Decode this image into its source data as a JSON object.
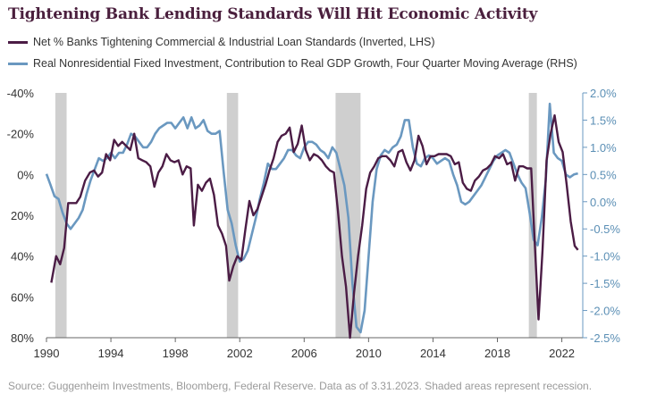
{
  "chart_data": {
    "type": "line",
    "title": "Tightening Bank Lending Standards Will Hit Economic Activity",
    "source": "Source: Guggenheim Investments, Bloomberg, Federal Reserve. Data as of 3.31.2023. Shaded areas represent recession.",
    "xlim": [
      1990,
      2023.3
    ],
    "x_ticks": [
      "1990",
      "1994",
      "1998",
      "2002",
      "2006",
      "2010",
      "2014",
      "2018",
      "2022"
    ],
    "y_left": {
      "lim": [
        -40,
        80
      ],
      "inverted": true,
      "ticks": [
        "-40%",
        "-20%",
        "0%",
        "20%",
        "40%",
        "60%",
        "80%"
      ]
    },
    "y_right": {
      "lim": [
        -2.5,
        2.0
      ],
      "ticks": [
        "2.0%",
        "1.5%",
        "1.0%",
        "0.5%",
        "0.0%",
        "-0.5%",
        "-1.0%",
        "-1.5%",
        "-2.0%",
        "-2.5%"
      ]
    },
    "recessions": [
      [
        1990.55,
        1991.25
      ],
      [
        2001.2,
        2001.9
      ],
      [
        2007.95,
        2009.5
      ],
      [
        2019.95,
        2020.45
      ]
    ],
    "legend_position": "top-left",
    "grid": false,
    "series": [
      {
        "name": "Net % Banks Tightening Commercial & Industrial Loan Standards (Inverted, LHS)",
        "axis": "left",
        "color": "#4b1c45",
        "points": [
          [
            1990.3,
            53
          ],
          [
            1990.6,
            40
          ],
          [
            1990.85,
            44
          ],
          [
            1991.1,
            36
          ],
          [
            1991.35,
            14
          ],
          [
            1991.6,
            14
          ],
          [
            1991.85,
            14
          ],
          [
            1992.1,
            11
          ],
          [
            1992.4,
            3
          ],
          [
            1992.7,
            -1
          ],
          [
            1992.95,
            -2
          ],
          [
            1993.2,
            1
          ],
          [
            1993.45,
            -1
          ],
          [
            1993.7,
            -10
          ],
          [
            1993.95,
            -7
          ],
          [
            1994.2,
            -17
          ],
          [
            1994.45,
            -14
          ],
          [
            1994.7,
            -16
          ],
          [
            1994.95,
            -14
          ],
          [
            1995.2,
            -12
          ],
          [
            1995.45,
            -20
          ],
          [
            1995.7,
            -8
          ],
          [
            1995.95,
            -7
          ],
          [
            1996.2,
            -6
          ],
          [
            1996.45,
            -4
          ],
          [
            1996.7,
            6
          ],
          [
            1996.95,
            -1
          ],
          [
            1997.2,
            -4
          ],
          [
            1997.45,
            -10
          ],
          [
            1997.7,
            -7
          ],
          [
            1997.95,
            -6
          ],
          [
            1998.2,
            -7
          ],
          [
            1998.45,
            0
          ],
          [
            1998.7,
            -4
          ],
          [
            1998.95,
            -3
          ],
          [
            1999.15,
            25
          ],
          [
            1999.4,
            5
          ],
          [
            1999.65,
            8
          ],
          [
            1999.9,
            4
          ],
          [
            2000.15,
            2
          ],
          [
            2000.4,
            10
          ],
          [
            2000.65,
            25
          ],
          [
            2000.9,
            29
          ],
          [
            2001.15,
            35
          ],
          [
            2001.35,
            52
          ],
          [
            2001.6,
            45
          ],
          [
            2001.85,
            40
          ],
          [
            2002.1,
            42
          ],
          [
            2002.35,
            27
          ],
          [
            2002.6,
            13
          ],
          [
            2002.85,
            20
          ],
          [
            2003.1,
            17
          ],
          [
            2003.35,
            11
          ],
          [
            2003.6,
            5
          ],
          [
            2003.85,
            -2
          ],
          [
            2004.1,
            -8
          ],
          [
            2004.35,
            -16
          ],
          [
            2004.6,
            -19
          ],
          [
            2004.85,
            -20
          ],
          [
            2005.1,
            -23
          ],
          [
            2005.35,
            -11
          ],
          [
            2005.6,
            -15
          ],
          [
            2005.85,
            -24
          ],
          [
            2006.1,
            -12
          ],
          [
            2006.35,
            -7
          ],
          [
            2006.6,
            -10
          ],
          [
            2006.85,
            -9
          ],
          [
            2007.1,
            -7
          ],
          [
            2007.35,
            -4
          ],
          [
            2007.6,
            -2
          ],
          [
            2007.85,
            -1
          ],
          [
            2008.1,
            18
          ],
          [
            2008.35,
            40
          ],
          [
            2008.6,
            55
          ],
          [
            2008.85,
            80
          ],
          [
            2009.1,
            58
          ],
          [
            2009.35,
            40
          ],
          [
            2009.6,
            25
          ],
          [
            2009.85,
            7
          ],
          [
            2010.1,
            -1
          ],
          [
            2010.35,
            -4
          ],
          [
            2010.6,
            -8
          ],
          [
            2010.85,
            -9
          ],
          [
            2011.1,
            -9
          ],
          [
            2011.35,
            -7
          ],
          [
            2011.6,
            -4
          ],
          [
            2011.85,
            -11
          ],
          [
            2012.1,
            -12
          ],
          [
            2012.35,
            -6
          ],
          [
            2012.6,
            -2
          ],
          [
            2012.85,
            -7
          ],
          [
            2013.1,
            -19
          ],
          [
            2013.35,
            -14
          ],
          [
            2013.6,
            -5
          ],
          [
            2013.85,
            -9
          ],
          [
            2014.1,
            -9
          ],
          [
            2014.35,
            -10
          ],
          [
            2014.6,
            -10
          ],
          [
            2014.85,
            -10
          ],
          [
            2015.1,
            -9
          ],
          [
            2015.35,
            -5
          ],
          [
            2015.6,
            -6
          ],
          [
            2015.85,
            4
          ],
          [
            2016.1,
            7
          ],
          [
            2016.35,
            8
          ],
          [
            2016.6,
            3
          ],
          [
            2016.85,
            1
          ],
          [
            2017.1,
            -2
          ],
          [
            2017.35,
            -3
          ],
          [
            2017.6,
            -5
          ],
          [
            2017.85,
            -9
          ],
          [
            2018.1,
            -8
          ],
          [
            2018.35,
            -10
          ],
          [
            2018.6,
            -5
          ],
          [
            2018.85,
            -6
          ],
          [
            2019.1,
            3
          ],
          [
            2019.35,
            -4
          ],
          [
            2019.6,
            -4
          ],
          [
            2019.85,
            -3
          ],
          [
            2020.1,
            -3
          ],
          [
            2020.3,
            30
          ],
          [
            2020.55,
            71
          ],
          [
            2020.8,
            37
          ],
          [
            2021.05,
            -7
          ],
          [
            2021.3,
            -20
          ],
          [
            2021.55,
            -29
          ],
          [
            2021.8,
            -16
          ],
          [
            2022.05,
            -11
          ],
          [
            2022.3,
            5
          ],
          [
            2022.55,
            23
          ],
          [
            2022.8,
            35
          ],
          [
            2023.0,
            37
          ]
        ]
      },
      {
        "name": "Real Nonresidential Fixed Investment, Contribution to Real GDP Growth, Four Quarter Moving Average (RHS)",
        "axis": "right",
        "color": "#6a98c0",
        "points": [
          [
            1990.0,
            0.51
          ],
          [
            1990.25,
            0.31
          ],
          [
            1990.5,
            0.1
          ],
          [
            1990.75,
            0.05
          ],
          [
            1991.0,
            -0.2
          ],
          [
            1991.25,
            -0.4
          ],
          [
            1991.5,
            -0.5
          ],
          [
            1991.75,
            -0.4
          ],
          [
            1992.0,
            -0.3
          ],
          [
            1992.25,
            -0.15
          ],
          [
            1992.5,
            0.15
          ],
          [
            1992.75,
            0.4
          ],
          [
            1993.0,
            0.6
          ],
          [
            1993.25,
            0.8
          ],
          [
            1993.5,
            0.75
          ],
          [
            1993.75,
            0.8
          ],
          [
            1994.0,
            0.9
          ],
          [
            1994.25,
            0.8
          ],
          [
            1994.5,
            0.9
          ],
          [
            1994.75,
            0.9
          ],
          [
            1995.0,
            1.05
          ],
          [
            1995.25,
            1.25
          ],
          [
            1995.5,
            1.2
          ],
          [
            1995.75,
            1.1
          ],
          [
            1996.0,
            1.0
          ],
          [
            1996.25,
            1.0
          ],
          [
            1996.5,
            1.1
          ],
          [
            1996.75,
            1.25
          ],
          [
            1997.0,
            1.35
          ],
          [
            1997.25,
            1.4
          ],
          [
            1997.5,
            1.45
          ],
          [
            1997.75,
            1.45
          ],
          [
            1998.0,
            1.35
          ],
          [
            1998.25,
            1.45
          ],
          [
            1998.5,
            1.55
          ],
          [
            1998.75,
            1.35
          ],
          [
            1999.0,
            1.55
          ],
          [
            1999.25,
            1.35
          ],
          [
            1999.5,
            1.4
          ],
          [
            1999.75,
            1.5
          ],
          [
            2000.0,
            1.3
          ],
          [
            2000.25,
            1.25
          ],
          [
            2000.5,
            1.25
          ],
          [
            2000.75,
            1.3
          ],
          [
            2001.0,
            0.55
          ],
          [
            2001.25,
            -0.15
          ],
          [
            2001.5,
            -0.4
          ],
          [
            2001.75,
            -0.8
          ],
          [
            2002.0,
            -1.1
          ],
          [
            2002.25,
            -1.05
          ],
          [
            2002.5,
            -0.9
          ],
          [
            2002.75,
            -0.6
          ],
          [
            2003.0,
            -0.3
          ],
          [
            2003.25,
            0.05
          ],
          [
            2003.5,
            0.35
          ],
          [
            2003.75,
            0.7
          ],
          [
            2004.0,
            0.6
          ],
          [
            2004.25,
            0.6
          ],
          [
            2004.5,
            0.7
          ],
          [
            2004.75,
            0.8
          ],
          [
            2005.0,
            0.95
          ],
          [
            2005.25,
            0.95
          ],
          [
            2005.5,
            0.85
          ],
          [
            2005.75,
            0.8
          ],
          [
            2006.0,
            1.0
          ],
          [
            2006.25,
            1.1
          ],
          [
            2006.5,
            1.1
          ],
          [
            2006.75,
            1.05
          ],
          [
            2007.0,
            0.95
          ],
          [
            2007.25,
            0.9
          ],
          [
            2007.5,
            0.8
          ],
          [
            2007.75,
            1.0
          ],
          [
            2008.0,
            0.9
          ],
          [
            2008.25,
            0.6
          ],
          [
            2008.5,
            0.3
          ],
          [
            2008.75,
            -0.3
          ],
          [
            2009.0,
            -1.5
          ],
          [
            2009.25,
            -2.3
          ],
          [
            2009.5,
            -2.4
          ],
          [
            2009.75,
            -2.0
          ],
          [
            2010.0,
            -1.0
          ],
          [
            2010.25,
            0.0
          ],
          [
            2010.5,
            0.6
          ],
          [
            2010.75,
            0.85
          ],
          [
            2011.0,
            0.95
          ],
          [
            2011.25,
            0.9
          ],
          [
            2011.5,
            1.0
          ],
          [
            2011.75,
            1.05
          ],
          [
            2012.0,
            1.2
          ],
          [
            2012.25,
            1.5
          ],
          [
            2012.5,
            1.5
          ],
          [
            2012.75,
            1.0
          ],
          [
            2013.0,
            0.7
          ],
          [
            2013.25,
            0.65
          ],
          [
            2013.5,
            0.8
          ],
          [
            2013.75,
            0.85
          ],
          [
            2014.0,
            0.8
          ],
          [
            2014.25,
            0.7
          ],
          [
            2014.5,
            0.75
          ],
          [
            2014.75,
            0.8
          ],
          [
            2015.0,
            0.75
          ],
          [
            2015.25,
            0.5
          ],
          [
            2015.5,
            0.3
          ],
          [
            2015.75,
            0.0
          ],
          [
            2016.0,
            -0.05
          ],
          [
            2016.25,
            0.0
          ],
          [
            2016.5,
            0.1
          ],
          [
            2016.75,
            0.2
          ],
          [
            2017.0,
            0.3
          ],
          [
            2017.25,
            0.45
          ],
          [
            2017.5,
            0.6
          ],
          [
            2017.75,
            0.75
          ],
          [
            2018.0,
            0.85
          ],
          [
            2018.25,
            0.9
          ],
          [
            2018.5,
            0.95
          ],
          [
            2018.75,
            0.9
          ],
          [
            2019.0,
            0.7
          ],
          [
            2019.25,
            0.5
          ],
          [
            2019.5,
            0.35
          ],
          [
            2019.75,
            0.25
          ],
          [
            2020.0,
            -0.2
          ],
          [
            2020.25,
            -0.7
          ],
          [
            2020.5,
            -0.8
          ],
          [
            2020.75,
            -0.3
          ],
          [
            2021.0,
            0.4
          ],
          [
            2021.25,
            1.8
          ],
          [
            2021.5,
            0.9
          ],
          [
            2021.75,
            0.8
          ],
          [
            2022.0,
            0.75
          ],
          [
            2022.25,
            0.5
          ],
          [
            2022.5,
            0.45
          ],
          [
            2022.75,
            0.5
          ],
          [
            2023.0,
            0.52
          ]
        ]
      }
    ]
  }
}
